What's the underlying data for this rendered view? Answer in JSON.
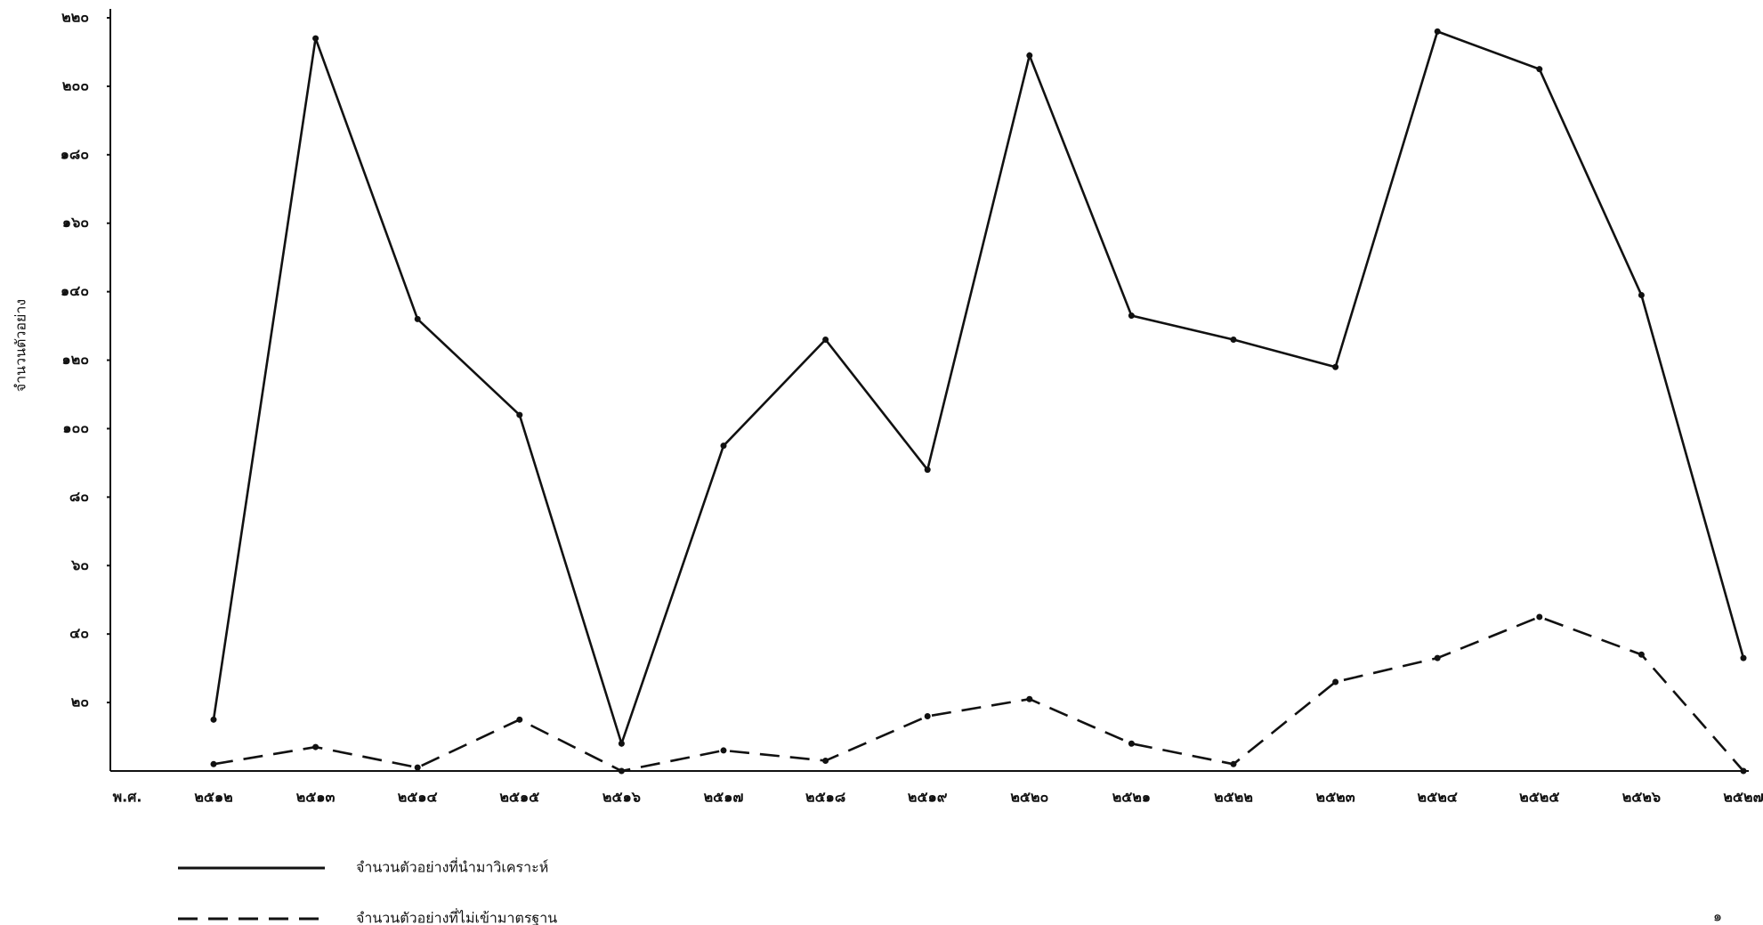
{
  "chart_data": {
    "type": "line",
    "y_label": "จำนวนตัวอย่าง",
    "x_label": "พ.ศ.",
    "categories": [
      "๒๕๑๒",
      "๒๕๑๓",
      "๒๕๑๔",
      "๒๕๑๕",
      "๒๕๑๖",
      "๒๕๑๗",
      "๒๕๑๘",
      "๒๕๑๙",
      "๒๕๒๐",
      "๒๕๒๑",
      "๒๕๒๒",
      "๒๕๒๓",
      "๒๕๒๔",
      "๒๕๒๕",
      "๒๕๒๖",
      "๒๕๒๗"
    ],
    "series": [
      {
        "name": "จำนวนตัวอย่างที่นำมาวิเคราะห์",
        "color": "#111111",
        "dash": "solid",
        "values": [
          15,
          214,
          132,
          104,
          8,
          95,
          126,
          88,
          209,
          133,
          126,
          118,
          216,
          205,
          139,
          33
        ]
      },
      {
        "name": "จำนวนตัวอย่างที่ไม่เข้ามาตรฐาน",
        "color": "#111111",
        "dash": "dashed",
        "values": [
          2,
          7,
          1,
          15,
          0,
          6,
          3,
          16,
          21,
          8,
          2,
          26,
          33,
          45,
          34,
          0
        ]
      }
    ],
    "ylim": [
      0,
      220
    ],
    "yticks": [
      {
        "value": 20,
        "label": "๒๐"
      },
      {
        "value": 40,
        "label": "๔๐"
      },
      {
        "value": 60,
        "label": "๖๐"
      },
      {
        "value": 80,
        "label": "๘๐"
      },
      {
        "value": 100,
        "label": "๑๐๐"
      },
      {
        "value": 120,
        "label": "๑๒๐"
      },
      {
        "value": 140,
        "label": "๑๔๐"
      },
      {
        "value": 160,
        "label": "๑๖๐"
      },
      {
        "value": 180,
        "label": "๑๘๐"
      },
      {
        "value": 200,
        "label": "๒๐๐"
      },
      {
        "value": 220,
        "label": "๒๒๐"
      }
    ],
    "grid": false
  },
  "page_number": "๑"
}
